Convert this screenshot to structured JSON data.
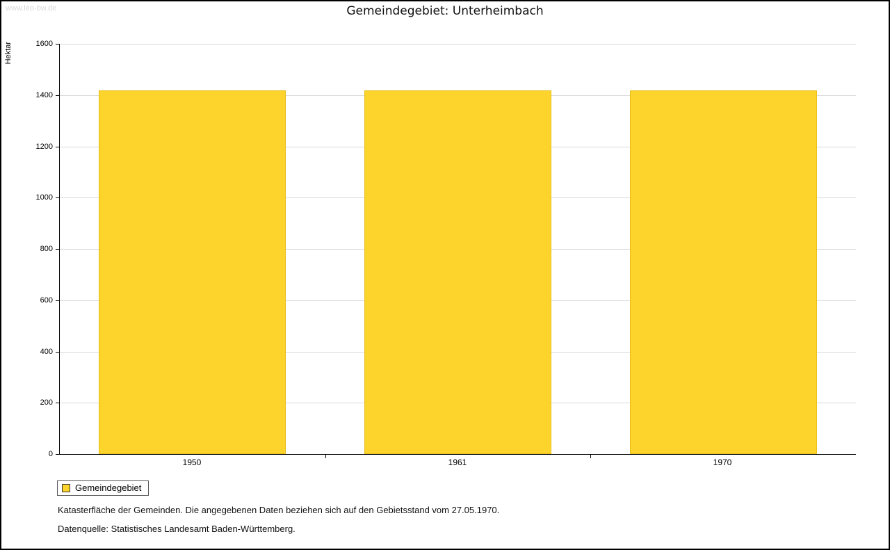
{
  "page": {
    "watermark": "www.leo-bw.de",
    "title": "Gemeindegebiet: Unterheimbach"
  },
  "chart_data": {
    "type": "bar",
    "title": "Gemeindegebiet: Unterheimbach",
    "categories": [
      "1950",
      "1961",
      "1970"
    ],
    "values": [
      1418,
      1418,
      1418
    ],
    "xlabel": "",
    "ylabel": "Hektar",
    "ylim": [
      0,
      1600
    ],
    "ytick_step": 200,
    "grid": true,
    "bar_color": "#FCD42C",
    "legend_position": "bottom-left",
    "legend_entries": [
      "Gemeindegebiet"
    ]
  },
  "legend": {
    "label": "Gemeindegebiet"
  },
  "footnotes": {
    "line1": "Katasterfläche der Gemeinden. Die angegebenen Daten beziehen sich auf den Gebietsstand vom 27.05.1970.",
    "line2": "Datenquelle: Statistisches Landesamt Baden-Württemberg."
  }
}
